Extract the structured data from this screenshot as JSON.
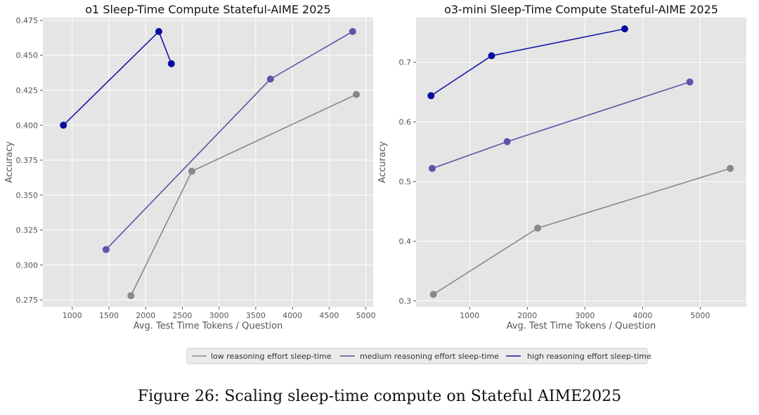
{
  "figure": {
    "caption": "Figure 26: Scaling sleep-time compute on Stateful AIME2025"
  },
  "colors": {
    "low": "#888888",
    "medium": "#5b55a8",
    "high": "#1616a8",
    "high_marker": "#0a0aa0",
    "plot_bg": "#e5e5e5",
    "grid": "#ffffff",
    "tick_text": "#555555",
    "title_text": "#111111"
  },
  "legend": {
    "entries": [
      "low reasoning effort sleep-time",
      "medium reasoning effort sleep-time",
      "high reasoning effort sleep-time"
    ]
  },
  "chart_data": [
    {
      "type": "line",
      "title": "o1 Sleep-Time Compute Stateful-AIME 2025",
      "xlabel": "Avg. Test Time Tokens / Question",
      "ylabel": "Accuracy",
      "xlim": [
        600,
        5100
      ],
      "ylim": [
        0.27,
        0.477
      ],
      "xticks": [
        1000,
        1500,
        2000,
        2500,
        3000,
        3500,
        4000,
        4500,
        5000
      ],
      "xtick_labels": [
        "1000",
        "1500",
        "2000",
        "2500",
        "3000",
        "3500",
        "4000",
        "4500",
        "5000"
      ],
      "yticks": [
        0.275,
        0.3,
        0.325,
        0.35,
        0.375,
        0.4,
        0.425,
        0.45,
        0.475
      ],
      "ytick_labels": [
        "0.275",
        "0.300",
        "0.325",
        "0.350",
        "0.375",
        "0.400",
        "0.425",
        "0.450",
        "0.475"
      ],
      "grid": true,
      "series": [
        {
          "name": "low reasoning effort sleep-time",
          "x": [
            1800,
            2630,
            4870
          ],
          "y": [
            0.278,
            0.367,
            0.422
          ]
        },
        {
          "name": "medium reasoning effort sleep-time",
          "x": [
            1460,
            3700,
            4820
          ],
          "y": [
            0.311,
            0.433,
            0.467
          ]
        },
        {
          "name": "high reasoning effort sleep-time",
          "x": [
            880,
            2180,
            2350
          ],
          "y": [
            0.4,
            0.467,
            0.444
          ]
        }
      ]
    },
    {
      "type": "line",
      "title": "o3-mini Sleep-Time Compute Stateful-AIME 2025",
      "xlabel": "Avg. Test Time Tokens / Question",
      "ylabel": "Accuracy",
      "xlim": [
        70,
        5800
      ],
      "ylim": [
        0.29,
        0.775
      ],
      "xticks": [
        1000,
        2000,
        3000,
        4000,
        5000
      ],
      "xtick_labels": [
        "1000",
        "2000",
        "3000",
        "4000",
        "5000"
      ],
      "yticks": [
        0.3,
        0.4,
        0.5,
        0.6,
        0.7
      ],
      "ytick_labels": [
        "0.3",
        "0.4",
        "0.5",
        "0.6",
        "0.7"
      ],
      "grid": true,
      "series": [
        {
          "name": "low reasoning effort sleep-time",
          "x": [
            370,
            2180,
            5520
          ],
          "y": [
            0.311,
            0.422,
            0.522
          ]
        },
        {
          "name": "medium reasoning effort sleep-time",
          "x": [
            350,
            1650,
            4820
          ],
          "y": [
            0.522,
            0.567,
            0.667
          ]
        },
        {
          "name": "high reasoning effort sleep-time",
          "x": [
            330,
            1380,
            3690
          ],
          "y": [
            0.644,
            0.711,
            0.756
          ]
        }
      ]
    }
  ]
}
